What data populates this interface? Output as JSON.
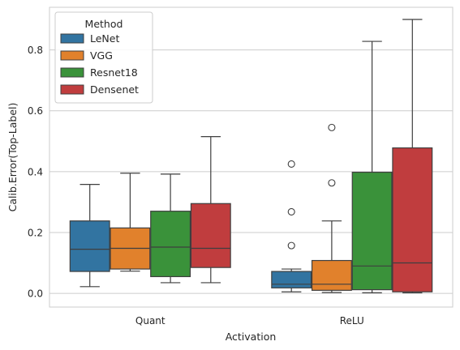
{
  "chart_data": {
    "type": "box",
    "xlabel": "Activation",
    "ylabel": "Calib.Error(Top-Label)",
    "categories": [
      "Quant",
      "ReLU"
    ],
    "ylim": [
      -0.045,
      0.94
    ],
    "yticks": [
      "0.0",
      "0.2",
      "0.4",
      "0.6",
      "0.8"
    ],
    "grid": "horizontal",
    "legend": {
      "title": "Method",
      "placement": "top-left"
    },
    "series": [
      {
        "name": "LeNet",
        "color": "#3274a1",
        "boxes": [
          {
            "category": "Quant",
            "whisker_low": 0.022,
            "q1": 0.072,
            "median": 0.145,
            "q3": 0.238,
            "whisker_high": 0.358,
            "outliers": []
          },
          {
            "category": "ReLU",
            "whisker_low": 0.005,
            "q1": 0.018,
            "median": 0.03,
            "q3": 0.072,
            "whisker_high": 0.08,
            "outliers": [
              0.157,
              0.268,
              0.425
            ]
          }
        ]
      },
      {
        "name": "VGG",
        "color": "#e1812c",
        "boxes": [
          {
            "category": "Quant",
            "whisker_low": 0.073,
            "q1": 0.08,
            "median": 0.148,
            "q3": 0.215,
            "whisker_high": 0.395,
            "outliers": []
          },
          {
            "category": "ReLU",
            "whisker_low": 0.003,
            "q1": 0.01,
            "median": 0.03,
            "q3": 0.108,
            "whisker_high": 0.238,
            "outliers": [
              0.363,
              0.545
            ]
          }
        ]
      },
      {
        "name": "Resnet18",
        "color": "#3a923a",
        "boxes": [
          {
            "category": "Quant",
            "whisker_low": 0.035,
            "q1": 0.055,
            "median": 0.152,
            "q3": 0.27,
            "whisker_high": 0.392,
            "outliers": []
          },
          {
            "category": "ReLU",
            "whisker_low": 0.002,
            "q1": 0.012,
            "median": 0.09,
            "q3": 0.398,
            "whisker_high": 0.828,
            "outliers": []
          }
        ]
      },
      {
        "name": "Densenet",
        "color": "#c03d3e",
        "boxes": [
          {
            "category": "Quant",
            "whisker_low": 0.035,
            "q1": 0.085,
            "median": 0.148,
            "q3": 0.295,
            "whisker_high": 0.515,
            "outliers": []
          },
          {
            "category": "ReLU",
            "whisker_low": 0.002,
            "q1": 0.005,
            "median": 0.1,
            "q3": 0.478,
            "whisker_high": 0.9,
            "outliers": []
          }
        ]
      }
    ]
  }
}
